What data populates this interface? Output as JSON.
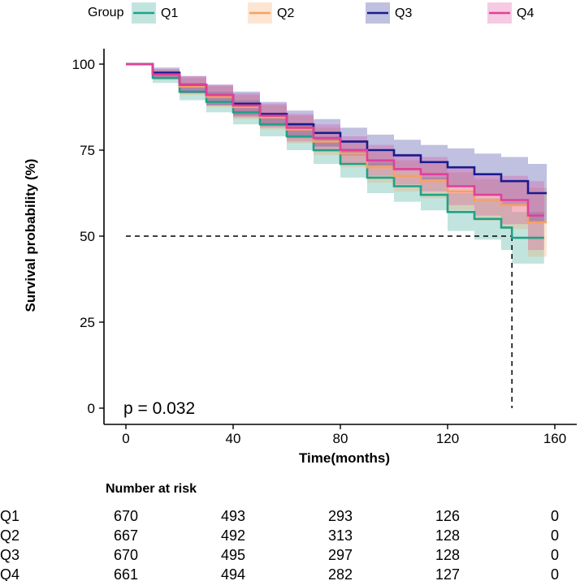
{
  "chart_data": {
    "type": "line",
    "subtype": "kaplan-meier",
    "xlabel": "Time(months)",
    "ylabel": "Survival probability (%)",
    "xlim": [
      0,
      160
    ],
    "ylim": [
      0,
      100
    ],
    "xticks": [
      0,
      40,
      80,
      120,
      160
    ],
    "yticks": [
      0,
      25,
      50,
      75,
      100
    ],
    "legend": {
      "title": "Group",
      "position": "top"
    },
    "pvalue_text": "p = 0.032",
    "median_line": {
      "y": 50,
      "x": 144
    },
    "series": [
      {
        "name": "Q1",
        "color": "#1FA187",
        "end_x": 156,
        "x": [
          0,
          10,
          20,
          30,
          40,
          50,
          60,
          70,
          80,
          90,
          100,
          110,
          120,
          130,
          140,
          144,
          156
        ],
        "y": [
          100,
          96,
          92,
          89,
          86,
          82.5,
          79,
          75,
          71,
          67,
          64.5,
          62,
          57,
          55,
          52.5,
          49.5,
          49.5
        ],
        "upper": [
          100,
          97.5,
          94.5,
          92,
          89.5,
          86,
          83,
          79,
          75.5,
          71.5,
          69,
          67,
          62.5,
          61,
          59,
          57,
          57
        ],
        "lower": [
          100,
          94.5,
          89.5,
          86,
          82.5,
          79,
          75,
          71,
          67,
          62.5,
          60,
          57.5,
          51.5,
          49,
          46,
          42,
          42
        ]
      },
      {
        "name": "Q2",
        "color": "#F4A261",
        "end_x": 157,
        "x": [
          0,
          10,
          20,
          30,
          40,
          50,
          60,
          70,
          80,
          90,
          100,
          110,
          120,
          130,
          140,
          150,
          157
        ],
        "y": [
          100,
          97,
          93.5,
          90.5,
          87.5,
          84.5,
          81,
          77.5,
          74,
          70,
          67.5,
          66,
          63,
          60.5,
          59,
          54,
          54
        ],
        "upper": [
          100,
          98.5,
          96,
          93.5,
          91,
          88,
          85,
          81.5,
          78,
          74.5,
          72,
          71,
          68.5,
          66.5,
          66,
          64,
          64
        ],
        "lower": [
          100,
          95.5,
          91,
          87.5,
          84,
          81,
          77,
          73.5,
          70,
          65.5,
          63,
          61,
          57.5,
          54.5,
          52,
          44,
          44
        ]
      },
      {
        "name": "Q3",
        "color": "#1B1B8F",
        "end_x": 157,
        "x": [
          0,
          10,
          20,
          30,
          40,
          50,
          60,
          70,
          80,
          90,
          100,
          110,
          120,
          130,
          140,
          150,
          157
        ],
        "y": [
          100,
          97.5,
          94,
          91,
          88.5,
          85.5,
          82.5,
          80,
          77.5,
          75,
          73.5,
          71.5,
          70,
          68,
          66,
          62.5,
          62.5
        ],
        "upper": [
          100,
          99,
          96.5,
          94,
          92,
          89,
          86.5,
          84,
          81.5,
          79.5,
          78,
          76.5,
          75.5,
          74,
          73,
          71,
          71
        ],
        "lower": [
          100,
          96,
          91.5,
          88,
          85,
          82,
          78.5,
          76,
          73.5,
          70.5,
          69,
          66.5,
          64.5,
          62,
          59,
          54,
          54
        ]
      },
      {
        "name": "Q4",
        "color": "#E0409A",
        "end_x": 156,
        "x": [
          0,
          10,
          20,
          30,
          40,
          50,
          60,
          70,
          80,
          90,
          100,
          110,
          120,
          130,
          140,
          150,
          156
        ],
        "y": [
          100,
          97,
          94,
          91,
          88,
          85,
          81.5,
          78.5,
          75,
          72,
          69.5,
          68,
          64.5,
          62,
          60.5,
          56,
          56
        ],
        "upper": [
          100,
          98.5,
          96.5,
          94,
          91.5,
          88.5,
          85.5,
          82.5,
          79,
          76.5,
          74,
          73,
          70,
          68,
          67.5,
          66,
          66
        ],
        "lower": [
          100,
          95.5,
          91.5,
          88,
          84.5,
          81.5,
          77.5,
          74.5,
          71,
          67.5,
          65,
          63,
          59,
          56,
          53.5,
          46,
          46
        ]
      }
    ]
  },
  "risk_table": {
    "title": "Number at risk",
    "times": [
      0,
      40,
      80,
      120,
      160
    ],
    "rows": [
      {
        "group": "Q1",
        "values": [
          "670",
          "493",
          "293",
          "126",
          "0"
        ]
      },
      {
        "group": "Q2",
        "values": [
          "667",
          "492",
          "313",
          "128",
          "0"
        ]
      },
      {
        "group": "Q3",
        "values": [
          "670",
          "495",
          "297",
          "128",
          "0"
        ]
      },
      {
        "group": "Q4",
        "values": [
          "661",
          "494",
          "282",
          "127",
          "0"
        ]
      }
    ]
  }
}
